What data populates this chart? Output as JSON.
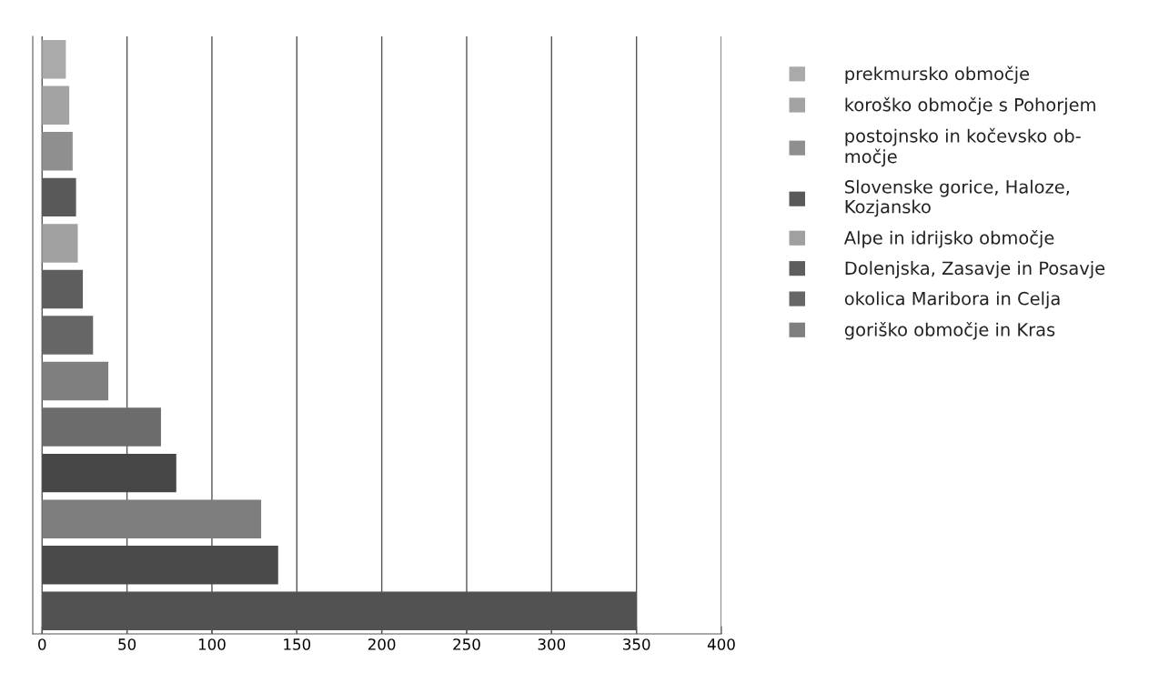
{
  "chart_data": {
    "type": "bar",
    "orientation": "horizontal",
    "categories": [
      null,
      null,
      null,
      null,
      null,
      null,
      null,
      null,
      null,
      null,
      null,
      null,
      null
    ],
    "series": [
      {
        "name": "prekmursko območje",
        "color": "#aaaaaa",
        "values": [
          14,
          null,
          null,
          null,
          null,
          null,
          null,
          null,
          null,
          null,
          null,
          null,
          null
        ]
      },
      {
        "name": "koroško območje s Pohorjem",
        "color": "#a3a3a3",
        "values": [
          null,
          16,
          null,
          null,
          null,
          null,
          null,
          null,
          null,
          null,
          null,
          null,
          null
        ]
      },
      {
        "name": "postojnsko in kočevsko ob-\nmočje",
        "color": "#8f8f8f",
        "values": [
          null,
          null,
          18,
          null,
          null,
          null,
          null,
          null,
          null,
          null,
          null,
          null,
          null
        ]
      },
      {
        "name": "Slovenske gorice, Haloze,\nKozjansko",
        "color": "#595959",
        "values": [
          null,
          null,
          null,
          20,
          null,
          null,
          null,
          null,
          null,
          null,
          null,
          null,
          null
        ]
      },
      {
        "name": "Alpe in idrijsko območje",
        "color": "#a0a0a0",
        "values": [
          null,
          null,
          null,
          null,
          21,
          null,
          null,
          null,
          null,
          null,
          null,
          null,
          null
        ]
      },
      {
        "name": "Dolenjska, Zasavje in Posavje",
        "color": "#5e5e5e",
        "values": [
          null,
          null,
          null,
          null,
          null,
          24,
          null,
          null,
          null,
          null,
          null,
          null,
          null
        ]
      },
      {
        "name": "okolica Maribora in Celja",
        "color": "#666666",
        "values": [
          null,
          null,
          null,
          null,
          null,
          null,
          30,
          null,
          null,
          null,
          null,
          null,
          null
        ]
      },
      {
        "name": "goriško območje in Kras",
        "color": "#7f7f7f",
        "values": [
          null,
          null,
          null,
          null,
          null,
          null,
          null,
          39,
          null,
          null,
          null,
          null,
          null
        ]
      },
      {
        "color": "#6c6c6c",
        "values": [
          null,
          null,
          null,
          null,
          null,
          null,
          null,
          null,
          70,
          null,
          null,
          null,
          null
        ]
      },
      {
        "color": "#464646",
        "values": [
          null,
          null,
          null,
          null,
          null,
          null,
          null,
          null,
          null,
          79,
          null,
          null,
          null
        ]
      },
      {
        "color": "#7d7d7d",
        "values": [
          null,
          null,
          null,
          null,
          null,
          null,
          null,
          null,
          null,
          null,
          129,
          null,
          null
        ]
      },
      {
        "color": "#4a4a4a",
        "values": [
          null,
          null,
          null,
          null,
          null,
          null,
          null,
          null,
          null,
          null,
          null,
          139,
          null
        ]
      },
      {
        "color": "#525252",
        "values": [
          null,
          null,
          null,
          null,
          null,
          null,
          null,
          null,
          null,
          null,
          null,
          null,
          350
        ]
      }
    ],
    "xlim": [
      -5.5,
      400
    ],
    "xticks": [
      0,
      50,
      100,
      150,
      200,
      250,
      300,
      350,
      400
    ],
    "grid": "x",
    "legend": "right",
    "tick_labels": "x"
  }
}
